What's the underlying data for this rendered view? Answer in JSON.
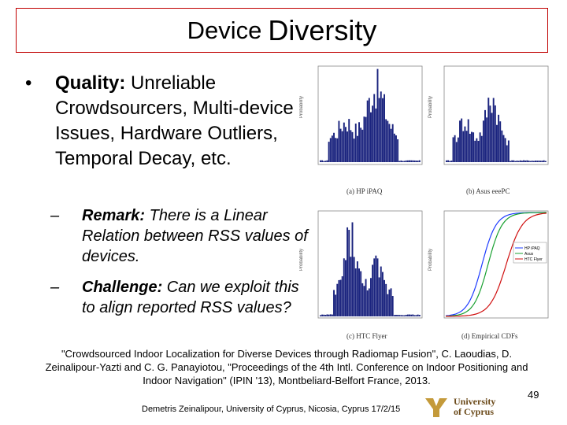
{
  "title": {
    "part1": "Device",
    "part2": "Diversity"
  },
  "bullet": {
    "symbol": "•",
    "label": "Quality:",
    "text": " Unreliable Crowdsourcers, Multi-device Issues, Hardware Outliers, Temporal Decay, etc."
  },
  "sub1": {
    "dash": "–",
    "label": "Remark:",
    "text": " There is a Linear Relation between RSS values of devices."
  },
  "sub2": {
    "dash": "–",
    "label": "Challenge:",
    "text": " Can we exploit this to align reported RSS values?"
  },
  "figures": {
    "a": {
      "caption": "(a) HP iPAQ"
    },
    "b": {
      "caption": "(b) Asus eeePC"
    },
    "c": {
      "caption": "(c) HTC Flyer"
    },
    "d": {
      "caption": "(d) Empirical CDFs",
      "legend": [
        "HP iPAQ",
        "Asus",
        "HTC Flyer"
      ]
    }
  },
  "citation": "\"Crowdsourced Indoor Localization for Diverse Devices through Radiomap Fusion\", C. Laoudias, D. Zeinalipour-Yazti and C. G. Panayiotou, \"Proceedings of the 4th Intl. Conference on Indoor Positioning and Indoor Navigation\" (IPIN '13), Montbeliard-Belfort France, 2013.",
  "footer": "Demetris Zeinalipour, University of Cyprus, Nicosia, Cyprus 17/2/15",
  "page_number": "49",
  "logo_text": {
    "line1": "University",
    "line2": "of Cyprus"
  },
  "colors": {
    "title_border": "#c00000",
    "histogram": "#1a237e",
    "cdf_blue": "#1e3cff",
    "cdf_green": "#18a030",
    "cdf_red": "#d01010"
  }
}
